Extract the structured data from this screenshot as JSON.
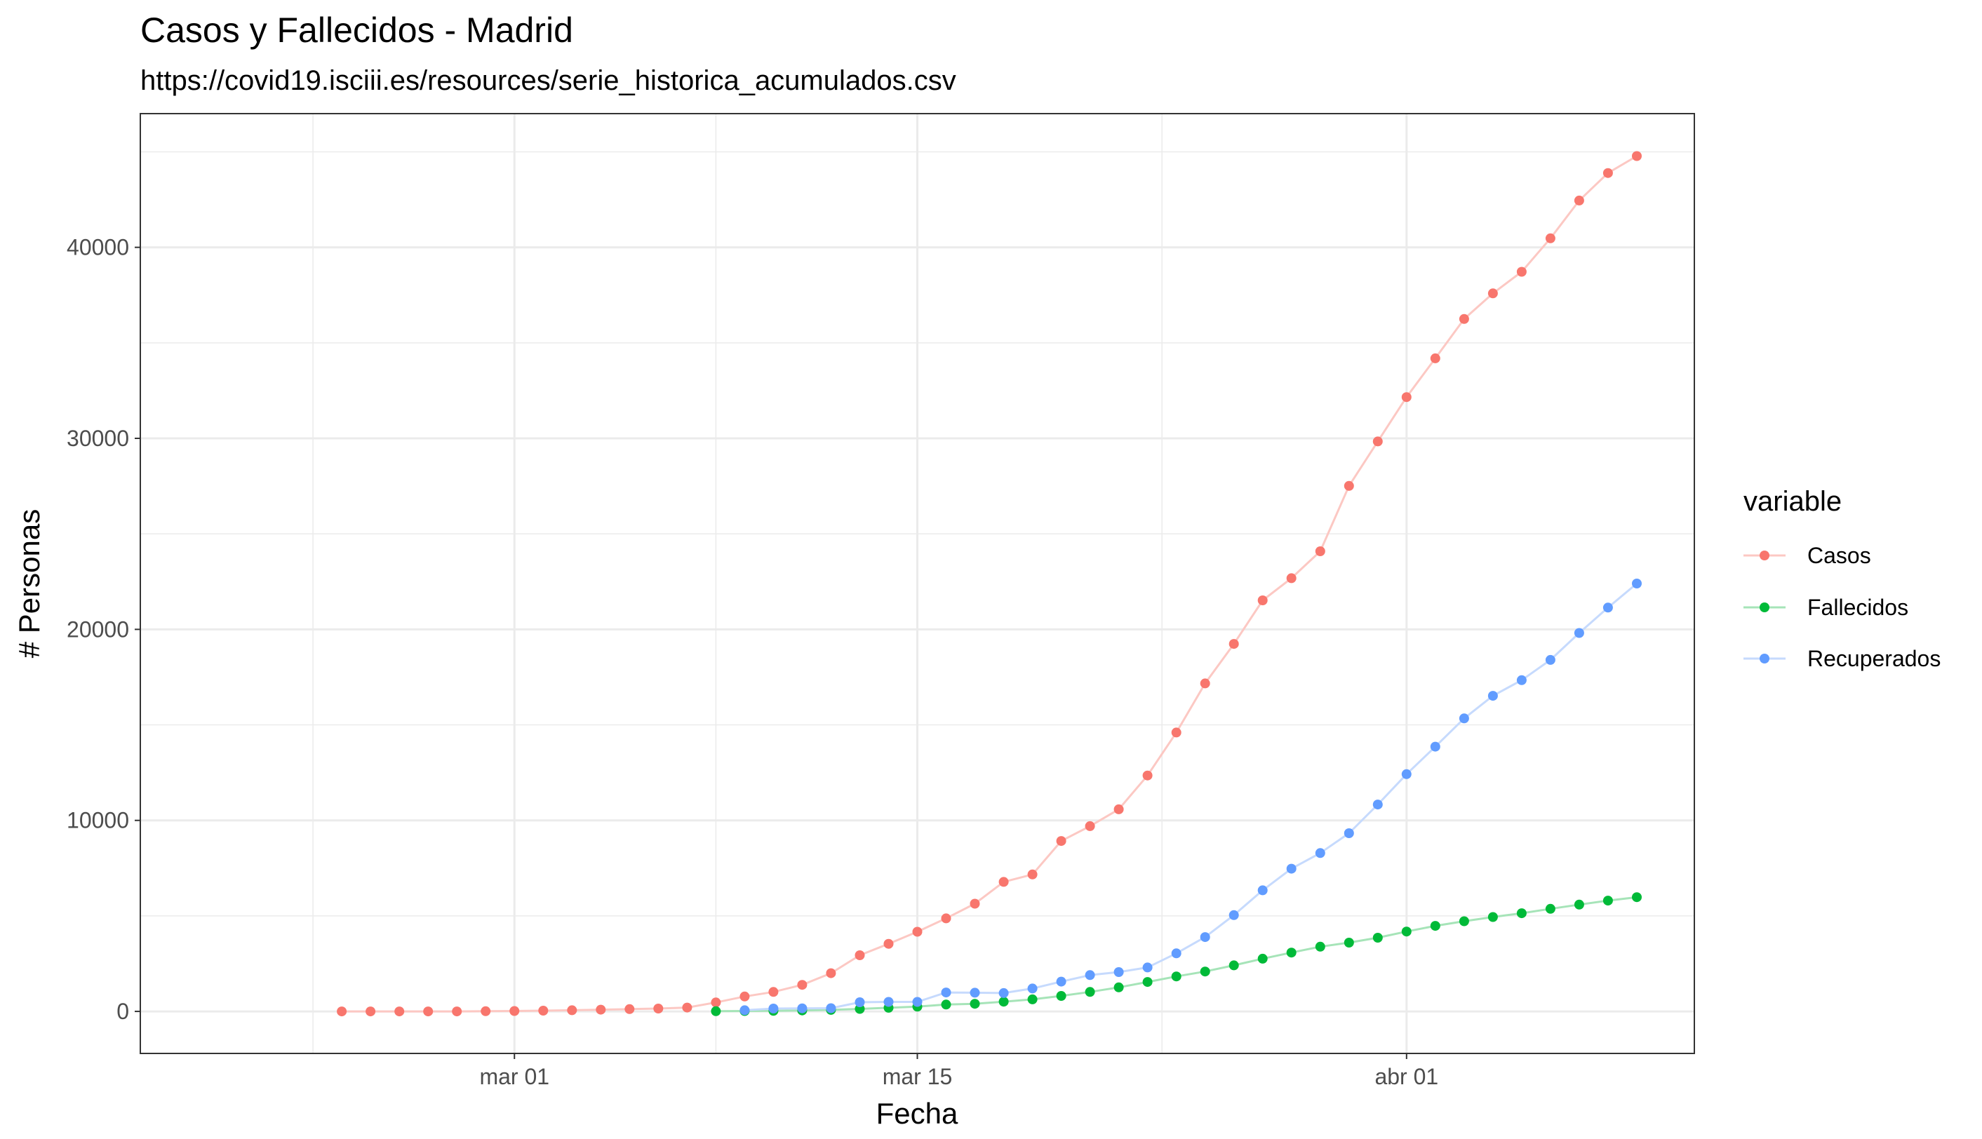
{
  "chart_data": {
    "type": "line",
    "title": "Casos y Fallecidos - Madrid",
    "subtitle": "https://covid19.isciii.es/resources/serie_historica_acumulados.csv",
    "xlabel": "Fecha",
    "ylabel": "# Personas",
    "x_ticks": [
      "mar 01",
      "mar 15",
      "abr 01"
    ],
    "y_ticks": [
      "0",
      "10000",
      "20000",
      "30000",
      "40000"
    ],
    "ylim": [
      -2200,
      47000
    ],
    "xlim": [
      "2020-02-17",
      "2020-04-11"
    ],
    "grid": true,
    "legend": {
      "title": "variable",
      "position": "right"
    },
    "series": [
      {
        "name": "Casos",
        "color": "#f8766d",
        "x": [
          "2020-02-24",
          "2020-02-25",
          "2020-02-26",
          "2020-02-27",
          "2020-02-28",
          "2020-02-29",
          "2020-03-01",
          "2020-03-02",
          "2020-03-03",
          "2020-03-04",
          "2020-03-05",
          "2020-03-06",
          "2020-03-07",
          "2020-03-08",
          "2020-03-09",
          "2020-03-10",
          "2020-03-11",
          "2020-03-12",
          "2020-03-13",
          "2020-03-14",
          "2020-03-15",
          "2020-03-16",
          "2020-03-17",
          "2020-03-18",
          "2020-03-19",
          "2020-03-20",
          "2020-03-21",
          "2020-03-22",
          "2020-03-23",
          "2020-03-24",
          "2020-03-25",
          "2020-03-26",
          "2020-03-27",
          "2020-03-28",
          "2020-03-29",
          "2020-03-30",
          "2020-03-31",
          "2020-04-01",
          "2020-04-02",
          "2020-04-03",
          "2020-04-04",
          "2020-04-05",
          "2020-04-06",
          "2020-04-07",
          "2020-04-08",
          "2020-04-09"
        ],
        "y": [
          0,
          0,
          0,
          0,
          0,
          10,
          20,
          40,
          60,
          90,
          120,
          150,
          200,
          470,
          780,
          1020,
          1390,
          2000,
          2940,
          3540,
          4170,
          4870,
          5640,
          6780,
          7170,
          8920,
          9700,
          10580,
          12350,
          14600,
          17170,
          19240,
          21520,
          22680,
          24090,
          27510,
          29840,
          32160,
          34190,
          36250,
          37590,
          38720,
          40470,
          42450,
          43890,
          44780
        ]
      },
      {
        "name": "Fallecidos",
        "color": "#00ba38",
        "x": [
          "2020-03-08",
          "2020-03-09",
          "2020-03-10",
          "2020-03-11",
          "2020-03-12",
          "2020-03-13",
          "2020-03-14",
          "2020-03-15",
          "2020-03-16",
          "2020-03-17",
          "2020-03-18",
          "2020-03-19",
          "2020-03-20",
          "2020-03-21",
          "2020-03-22",
          "2020-03-23",
          "2020-03-24",
          "2020-03-25",
          "2020-03-26",
          "2020-03-27",
          "2020-03-28",
          "2020-03-29",
          "2020-03-30",
          "2020-03-31",
          "2020-04-01",
          "2020-04-02",
          "2020-04-03",
          "2020-04-04",
          "2020-04-05",
          "2020-04-06",
          "2020-04-07",
          "2020-04-08",
          "2020-04-09"
        ],
        "y": [
          10,
          20,
          30,
          50,
          80,
          130,
          190,
          250,
          360,
          400,
          510,
          630,
          810,
          1020,
          1260,
          1540,
          1830,
          2090,
          2410,
          2760,
          3080,
          3390,
          3600,
          3860,
          4180,
          4480,
          4720,
          4940,
          5140,
          5370,
          5590,
          5800,
          5980
        ]
      },
      {
        "name": "Recuperados",
        "color": "#619cff",
        "x": [
          "2020-03-09",
          "2020-03-10",
          "2020-03-11",
          "2020-03-12",
          "2020-03-13",
          "2020-03-14",
          "2020-03-15",
          "2020-03-16",
          "2020-03-17",
          "2020-03-18",
          "2020-03-19",
          "2020-03-20",
          "2020-03-21",
          "2020-03-22",
          "2020-03-23",
          "2020-03-24",
          "2020-03-25",
          "2020-03-26",
          "2020-03-27",
          "2020-03-28",
          "2020-03-29",
          "2020-03-30",
          "2020-03-31",
          "2020-04-01",
          "2020-04-02",
          "2020-04-03",
          "2020-04-04",
          "2020-04-05",
          "2020-04-06",
          "2020-04-07",
          "2020-04-08",
          "2020-04-09"
        ],
        "y": [
          60,
          150,
          160,
          170,
          480,
          500,
          500,
          990,
          980,
          960,
          1200,
          1560,
          1900,
          2060,
          2300,
          3040,
          3890,
          5040,
          6340,
          7470,
          8290,
          9330,
          10830,
          12420,
          13860,
          15340,
          16520,
          17340,
          18400,
          19810,
          21140,
          22400
        ]
      }
    ]
  }
}
